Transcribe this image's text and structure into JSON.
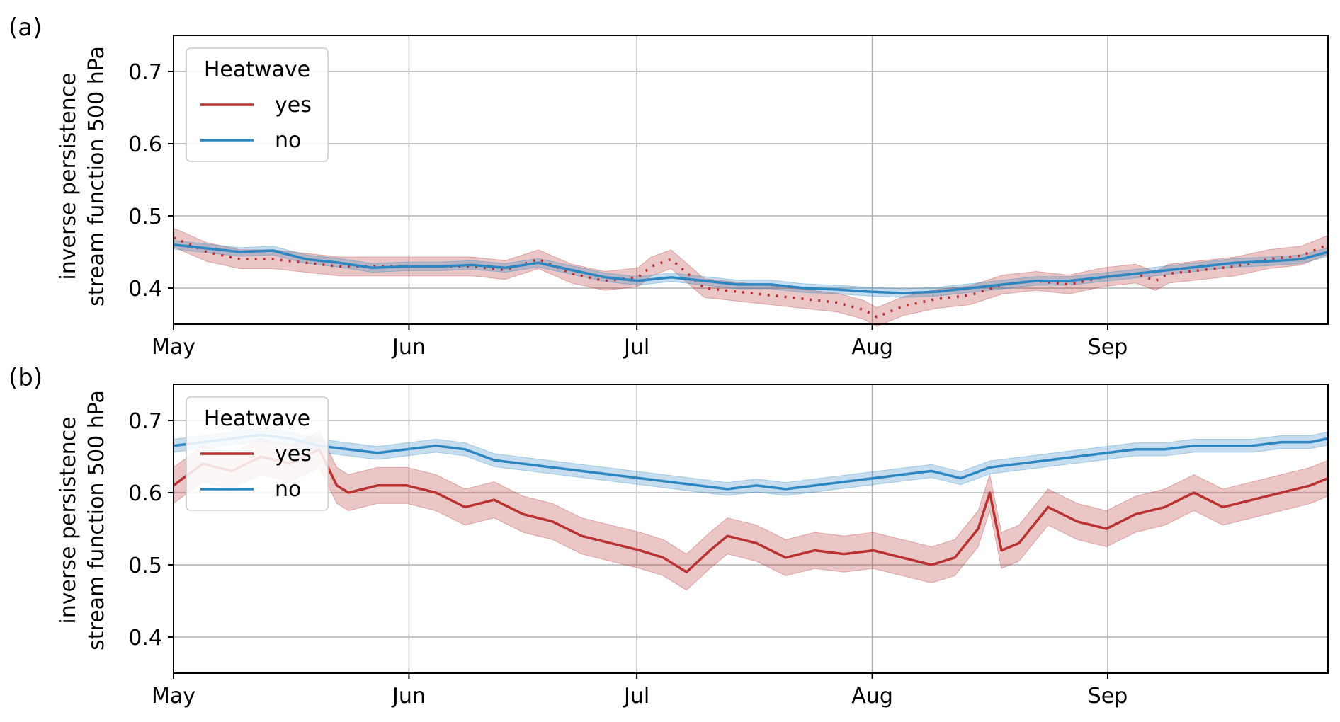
{
  "chart_data": [
    {
      "type": "line",
      "panel_label": "(a)",
      "ylabel_lines": [
        "inverse persistence",
        "stream function 500 hPa"
      ],
      "xlabel": "",
      "x_ticks": [
        "May",
        "Jun",
        "Jul",
        "Aug",
        "Sep"
      ],
      "y_ticks": [
        "0.4",
        "0.5",
        "0.6",
        "0.7"
      ],
      "ylim": [
        0.35,
        0.75
      ],
      "x_range_days": [
        0,
        148
      ],
      "grid": true,
      "legend": {
        "title": "Heatwave",
        "placement": "upper-left",
        "entries": [
          "yes",
          "no"
        ]
      },
      "series": [
        {
          "name": "yes",
          "color": "#b83232",
          "style": "solid-with-dotted-gaps",
          "band_width": 0.013,
          "points": [
            [
              0,
              0.47
            ],
            [
              5,
              0.45
            ],
            [
              10,
              0.44
            ],
            [
              15,
              0.44
            ],
            [
              20,
              0.435
            ],
            [
              25,
              0.43
            ],
            [
              30,
              0.43
            ],
            [
              35,
              0.43
            ],
            [
              40,
              0.43
            ],
            [
              45,
              0.43
            ],
            [
              50,
              0.425
            ],
            [
              55,
              0.44
            ],
            [
              60,
              0.42
            ],
            [
              65,
              0.41
            ],
            [
              70,
              0.415
            ],
            [
              72,
              0.43
            ],
            [
              75,
              0.44
            ],
            [
              80,
              0.4
            ],
            [
              85,
              0.395
            ],
            [
              90,
              0.39
            ],
            [
              95,
              0.385
            ],
            [
              100,
              0.38
            ],
            [
              104,
              0.37
            ],
            [
              106,
              0.36
            ],
            [
              110,
              0.375
            ],
            [
              115,
              0.385
            ],
            [
              120,
              0.39
            ],
            [
              125,
              0.405
            ],
            [
              130,
              0.41
            ],
            [
              135,
              0.405
            ],
            [
              140,
              0.415
            ],
            [
              145,
              0.42
            ],
            [
              148,
              0.41
            ],
            [
              150,
              0.42
            ],
            [
              155,
              0.425
            ],
            [
              160,
              0.43
            ],
            [
              165,
              0.44
            ],
            [
              170,
              0.445
            ],
            [
              174,
              0.46
            ]
          ]
        },
        {
          "name": "no",
          "color": "#2e86c1",
          "style": "solid",
          "band_width": 0.006,
          "points": [
            [
              0,
              0.46
            ],
            [
              5,
              0.455
            ],
            [
              10,
              0.45
            ],
            [
              15,
              0.452
            ],
            [
              20,
              0.44
            ],
            [
              25,
              0.435
            ],
            [
              30,
              0.428
            ],
            [
              35,
              0.43
            ],
            [
              40,
              0.43
            ],
            [
              45,
              0.432
            ],
            [
              50,
              0.428
            ],
            [
              55,
              0.435
            ],
            [
              60,
              0.425
            ],
            [
              65,
              0.415
            ],
            [
              70,
              0.41
            ],
            [
              75,
              0.415
            ],
            [
              80,
              0.41
            ],
            [
              85,
              0.405
            ],
            [
              90,
              0.405
            ],
            [
              95,
              0.4
            ],
            [
              100,
              0.398
            ],
            [
              105,
              0.395
            ],
            [
              110,
              0.393
            ],
            [
              115,
              0.395
            ],
            [
              120,
              0.4
            ],
            [
              125,
              0.405
            ],
            [
              130,
              0.41
            ],
            [
              135,
              0.41
            ],
            [
              140,
              0.415
            ],
            [
              145,
              0.42
            ],
            [
              150,
              0.425
            ],
            [
              155,
              0.43
            ],
            [
              160,
              0.435
            ],
            [
              165,
              0.437
            ],
            [
              170,
              0.44
            ],
            [
              174,
              0.45
            ]
          ]
        }
      ]
    },
    {
      "type": "line",
      "panel_label": "(b)",
      "ylabel_lines": [
        "inverse persistence",
        "stream function 500 hPa"
      ],
      "xlabel": "",
      "x_ticks": [
        "May",
        "Jun",
        "Jul",
        "Aug",
        "Sep"
      ],
      "y_ticks": [
        "0.4",
        "0.5",
        "0.6",
        "0.7"
      ],
      "ylim": [
        0.35,
        0.75
      ],
      "grid": true,
      "legend": {
        "title": "Heatwave",
        "placement": "upper-left",
        "entries": [
          "yes",
          "no"
        ]
      },
      "series": [
        {
          "name": "yes",
          "color": "#b83232",
          "style": "solid-with-dotted-gaps",
          "band_width": 0.025,
          "points": [
            [
              0,
              0.61
            ],
            [
              5,
              0.64
            ],
            [
              10,
              0.63
            ],
            [
              15,
              0.65
            ],
            [
              20,
              0.64
            ],
            [
              25,
              0.66
            ],
            [
              28,
              0.61
            ],
            [
              30,
              0.6
            ],
            [
              35,
              0.61
            ],
            [
              40,
              0.61
            ],
            [
              45,
              0.6
            ],
            [
              50,
              0.58
            ],
            [
              55,
              0.59
            ],
            [
              60,
              0.57
            ],
            [
              65,
              0.56
            ],
            [
              70,
              0.54
            ],
            [
              75,
              0.53
            ],
            [
              80,
              0.52
            ],
            [
              84,
              0.51
            ],
            [
              88,
              0.49
            ],
            [
              92,
              0.52
            ],
            [
              95,
              0.54
            ],
            [
              100,
              0.53
            ],
            [
              105,
              0.51
            ],
            [
              110,
              0.52
            ],
            [
              115,
              0.515
            ],
            [
              120,
              0.52
            ],
            [
              125,
              0.51
            ],
            [
              130,
              0.5
            ],
            [
              134,
              0.51
            ],
            [
              138,
              0.55
            ],
            [
              140,
              0.6
            ],
            [
              142,
              0.52
            ],
            [
              145,
              0.53
            ],
            [
              150,
              0.58
            ],
            [
              155,
              0.56
            ],
            [
              160,
              0.55
            ],
            [
              165,
              0.57
            ],
            [
              170,
              0.58
            ],
            [
              175,
              0.6
            ],
            [
              180,
              0.58
            ],
            [
              185,
              0.59
            ],
            [
              190,
              0.6
            ],
            [
              195,
              0.61
            ],
            [
              198,
              0.62
            ]
          ]
        },
        {
          "name": "no",
          "color": "#2e86c1",
          "style": "solid",
          "band_width": 0.009,
          "points": [
            [
              0,
              0.665
            ],
            [
              5,
              0.67
            ],
            [
              10,
              0.675
            ],
            [
              15,
              0.68
            ],
            [
              20,
              0.675
            ],
            [
              25,
              0.665
            ],
            [
              30,
              0.66
            ],
            [
              35,
              0.655
            ],
            [
              40,
              0.66
            ],
            [
              45,
              0.665
            ],
            [
              50,
              0.66
            ],
            [
              55,
              0.645
            ],
            [
              60,
              0.64
            ],
            [
              65,
              0.635
            ],
            [
              70,
              0.63
            ],
            [
              75,
              0.625
            ],
            [
              80,
              0.62
            ],
            [
              85,
              0.615
            ],
            [
              90,
              0.61
            ],
            [
              95,
              0.605
            ],
            [
              100,
              0.61
            ],
            [
              105,
              0.605
            ],
            [
              110,
              0.61
            ],
            [
              115,
              0.615
            ],
            [
              120,
              0.62
            ],
            [
              125,
              0.625
            ],
            [
              130,
              0.63
            ],
            [
              135,
              0.62
            ],
            [
              140,
              0.635
            ],
            [
              145,
              0.64
            ],
            [
              150,
              0.645
            ],
            [
              155,
              0.65
            ],
            [
              160,
              0.655
            ],
            [
              165,
              0.66
            ],
            [
              170,
              0.66
            ],
            [
              175,
              0.665
            ],
            [
              180,
              0.665
            ],
            [
              185,
              0.665
            ],
            [
              190,
              0.67
            ],
            [
              195,
              0.67
            ],
            [
              198,
              0.675
            ]
          ]
        }
      ]
    }
  ]
}
